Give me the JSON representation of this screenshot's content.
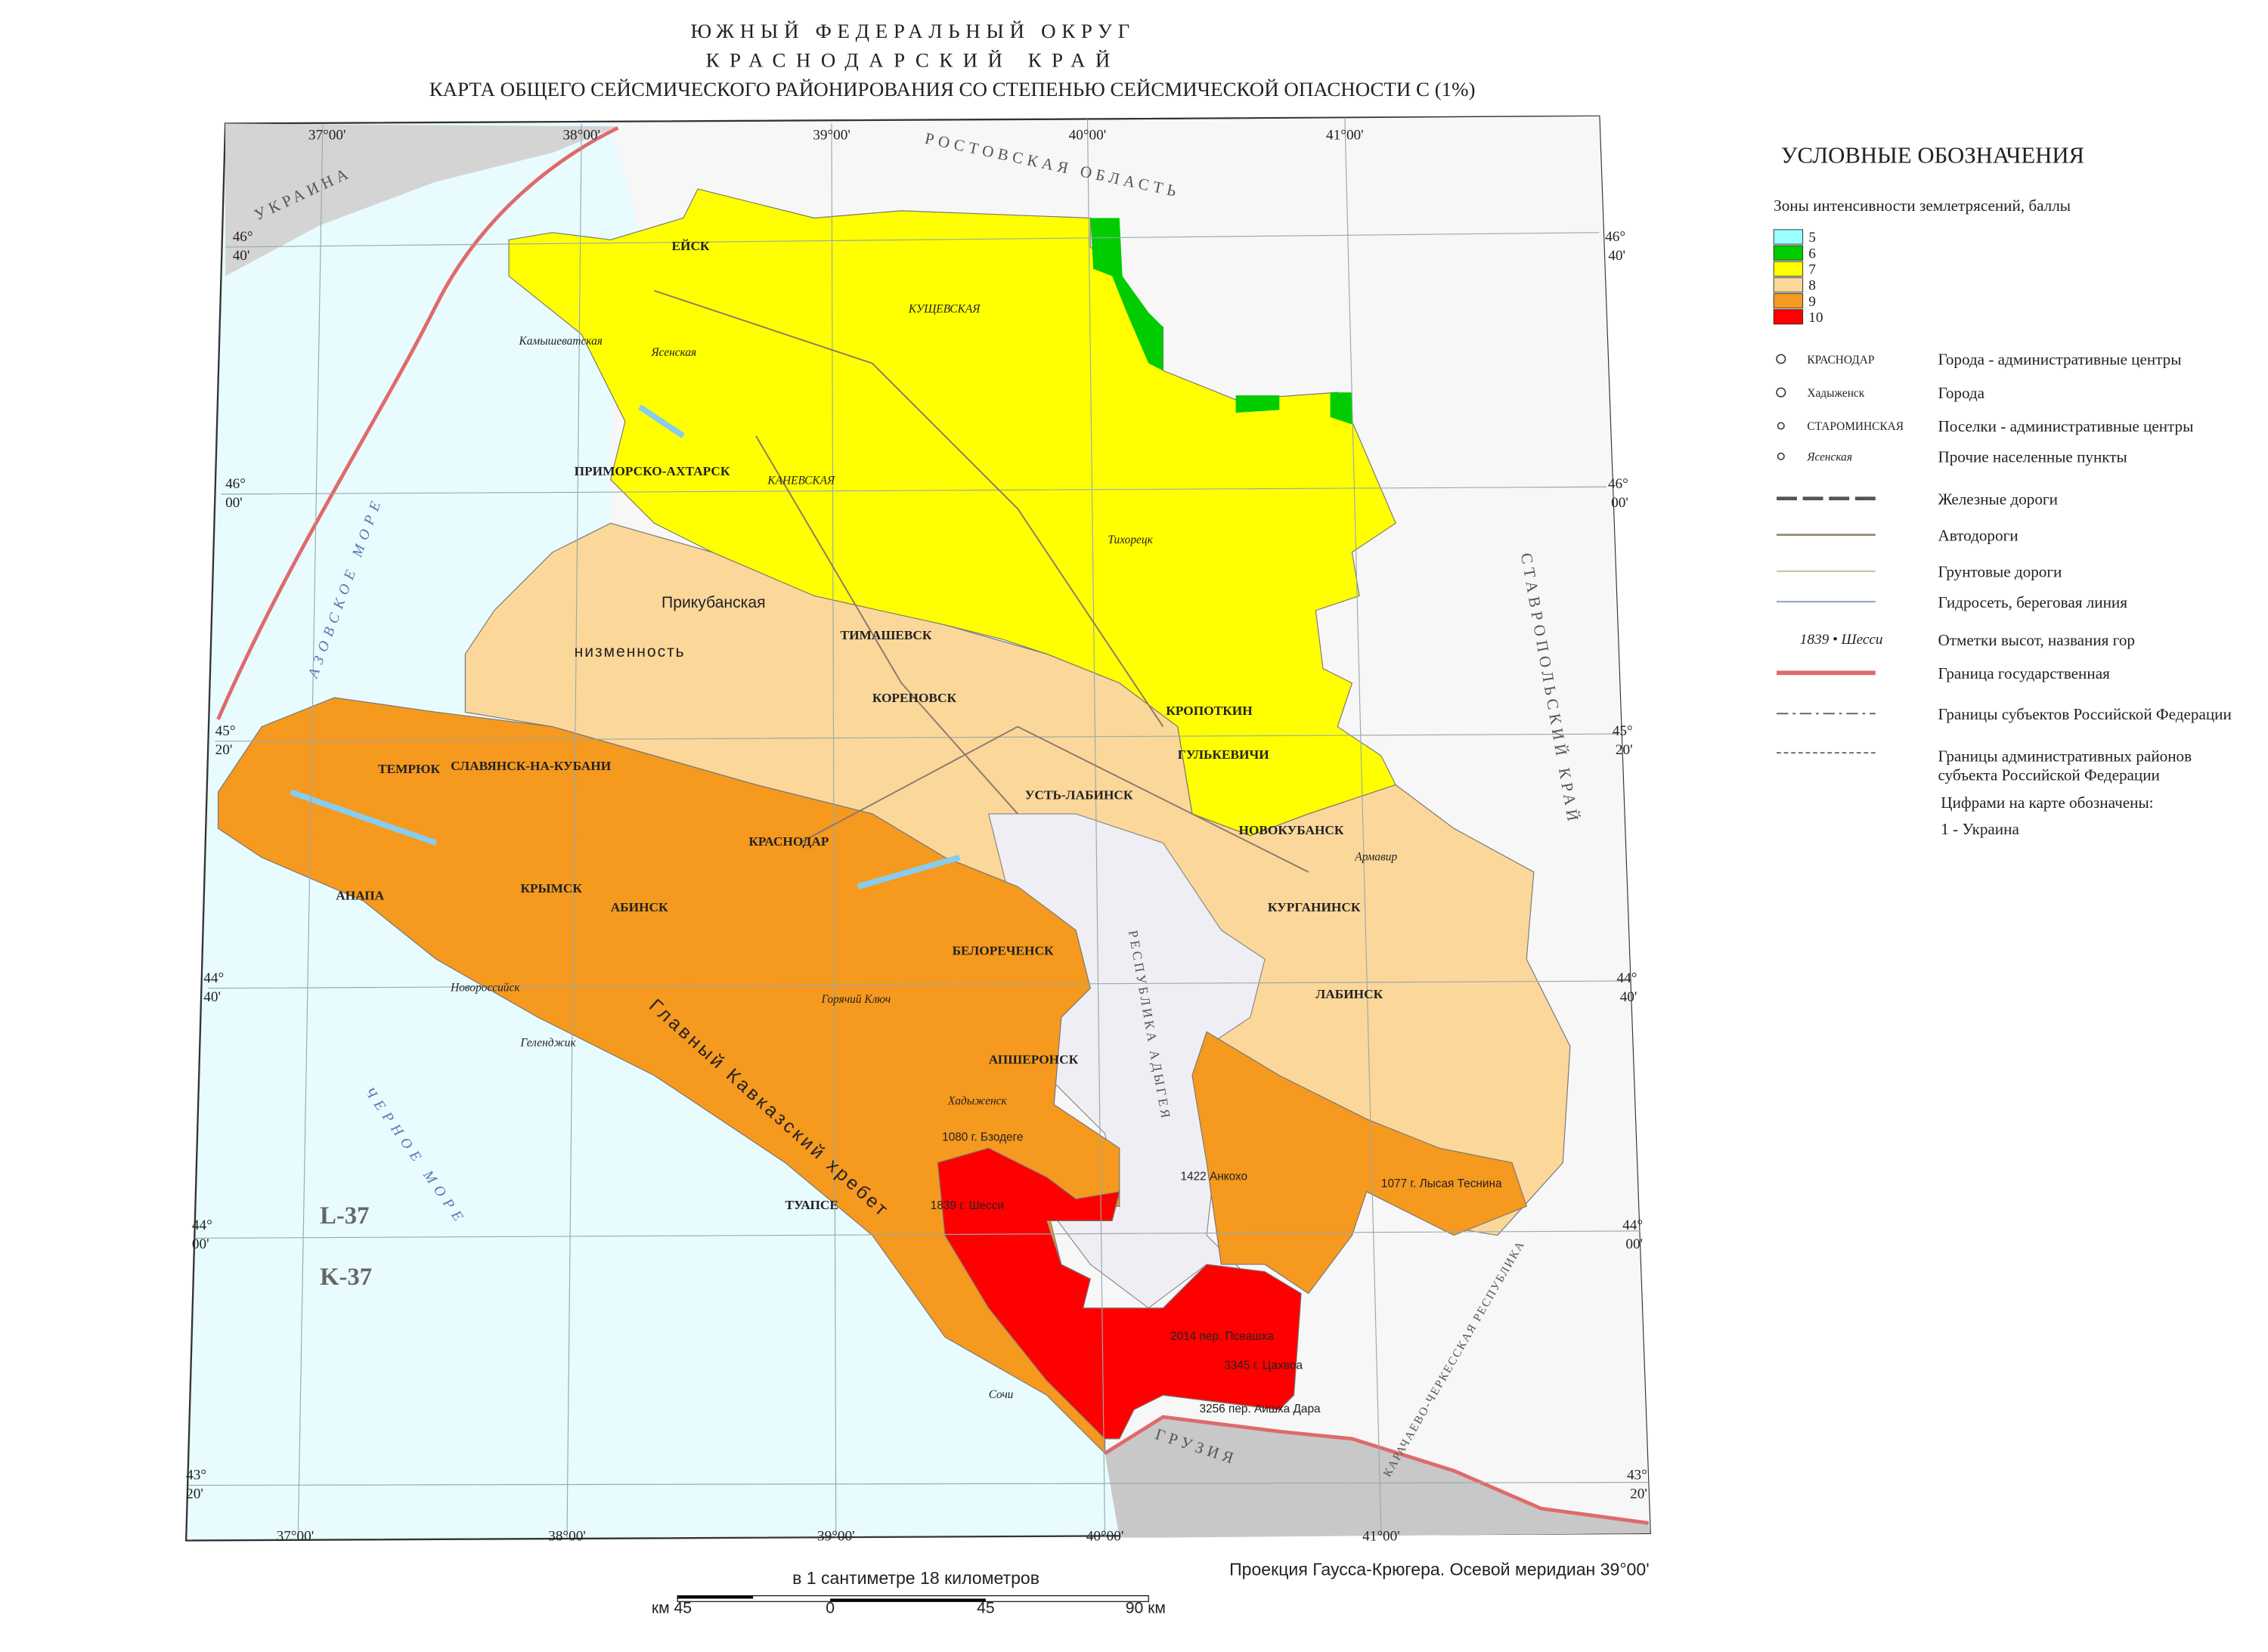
{
  "title": [
    "ЮЖНЫЙ ФЕДЕРАЛЬНЫЙ ОКРУГ",
    "КРАСНОДАРСКИЙ КРАЙ",
    "КАРТА ОБЩЕГО СЕЙСМИЧЕСКОГО РАЙОНИРОВАНИЯ СО СТЕПЕНЬЮ СЕЙСМИЧЕСКОЙ ОПАСНОСТИ С (1%)"
  ],
  "legend": {
    "title": "УСЛОВНЫЕ ОБОЗНАЧЕНИЯ",
    "zones_title": "Зоны интенсивности землетрясений, баллы",
    "zones": [
      {
        "label": "5",
        "color": "#99ffff"
      },
      {
        "label": "6",
        "color": "#00cc00"
      },
      {
        "label": "7",
        "color": "#ffff00"
      },
      {
        "label": "8",
        "color": "#fcd79a"
      },
      {
        "label": "9",
        "color": "#f5991f"
      },
      {
        "label": "10",
        "color": "#ff0000"
      }
    ],
    "symbols": [
      {
        "sample": "КРАСНОДАР",
        "text": "Города - административные центры"
      },
      {
        "sample": "Хадыженск",
        "text": "Города"
      },
      {
        "sample": "СТАРОМИНСКАЯ",
        "text": "Поселки - административные центры"
      },
      {
        "sample": "Ясенская",
        "text": "Прочие населенные пункты"
      },
      {
        "text": "Железные дороги"
      },
      {
        "text": "Автодороги"
      },
      {
        "text": "Грунтовые дороги"
      },
      {
        "text": "Гидросеть, береговая линия"
      },
      {
        "sample": "1839 • Шесси",
        "text": "Отметки высот, названия гор"
      },
      {
        "text": "Граница государственная"
      },
      {
        "text": "Границы субъектов Российской Федерации"
      },
      {
        "text": "Границы административных районов"
      },
      {
        "text": "субъекта Российской Федерации"
      },
      {
        "text": "Цифрами на карте обозначены:"
      },
      {
        "text": "1  -  Украина"
      }
    ]
  },
  "map": {
    "labels": [
      "ЕЙСК",
      "ПРИМОРСКО-АХТАРСК",
      "ТИМАШЕВСК",
      "КОРЕНОВСК",
      "КРАСНОДАР",
      "СЛАВЯНСК-НА-КУБАНИ",
      "ТЕМРЮК",
      "КРЫМСК",
      "АБИНСК",
      "АНАПА",
      "Новороссийск",
      "Геленджик",
      "ТУАПСЕ",
      "Сочи",
      "АПШЕРОНСК",
      "БЕЛОРЕЧЕНСК",
      "ЛАБИНСК",
      "КУРГАНИНСК",
      "НОВОКУБАНСК",
      "КРОПОТКИН",
      "ГУЛЬКЕВИЧИ",
      "Тихорецк",
      "УСТЬ-ЛАБИНСК",
      "Горячий Ключ",
      "Хадыженск",
      "УКРАИНА",
      "РОСТОВСКАЯ ОБЛАСТЬ",
      "СТАВРОПОЛЬСКИЙ КРАЙ",
      "ГРУЗИЯ",
      "АЗОВСКОЕ МОРЕ",
      "ЧЕРНОЕ МОРЕ",
      "Главный Кавказский хребет",
      "Прикубанская",
      "низменность",
      "L-37",
      "K-37",
      "1080 г. Бзодеге",
      "1839 г. Шесси",
      "1422 Анкохо",
      "1077 г. Лысая Теснина",
      "2014 пер. Псеашха",
      "3345 г. Цахвоа",
      "3256 пер. Аишха Дара",
      "Армавир",
      "КАРАЧАЕВО-ЧЕРКЕССКАЯ РЕСПУБЛИКА",
      "РЕСПУБЛИКА АДЫГЕЯ",
      "Ясенская",
      "КУЩЕВСКАЯ",
      "КАНЕВСКАЯ",
      "Камышеватская"
    ],
    "lon_top": [
      "37°00'",
      "38°00'",
      "39°00'",
      "40°00'",
      "41°00'"
    ],
    "lon_bottom": [
      "37°00'",
      "38°00'",
      "39°00'",
      "40°00'",
      "41°00'"
    ],
    "lat": [
      [
        "46°",
        "40'"
      ],
      [
        "46°",
        "00'"
      ],
      [
        "45°",
        "20'"
      ],
      [
        "44°",
        "40'"
      ],
      [
        "44°",
        "00'"
      ],
      [
        "43°",
        "20'"
      ]
    ]
  },
  "footer": {
    "scale_text": "в 1 сантиметре 18 километров",
    "scale_ticks": [
      "км 45",
      "0",
      "45",
      "90 км"
    ],
    "projection": "Проекция Гаусса-Крюгера. Осевой меридиан 39°00'"
  }
}
